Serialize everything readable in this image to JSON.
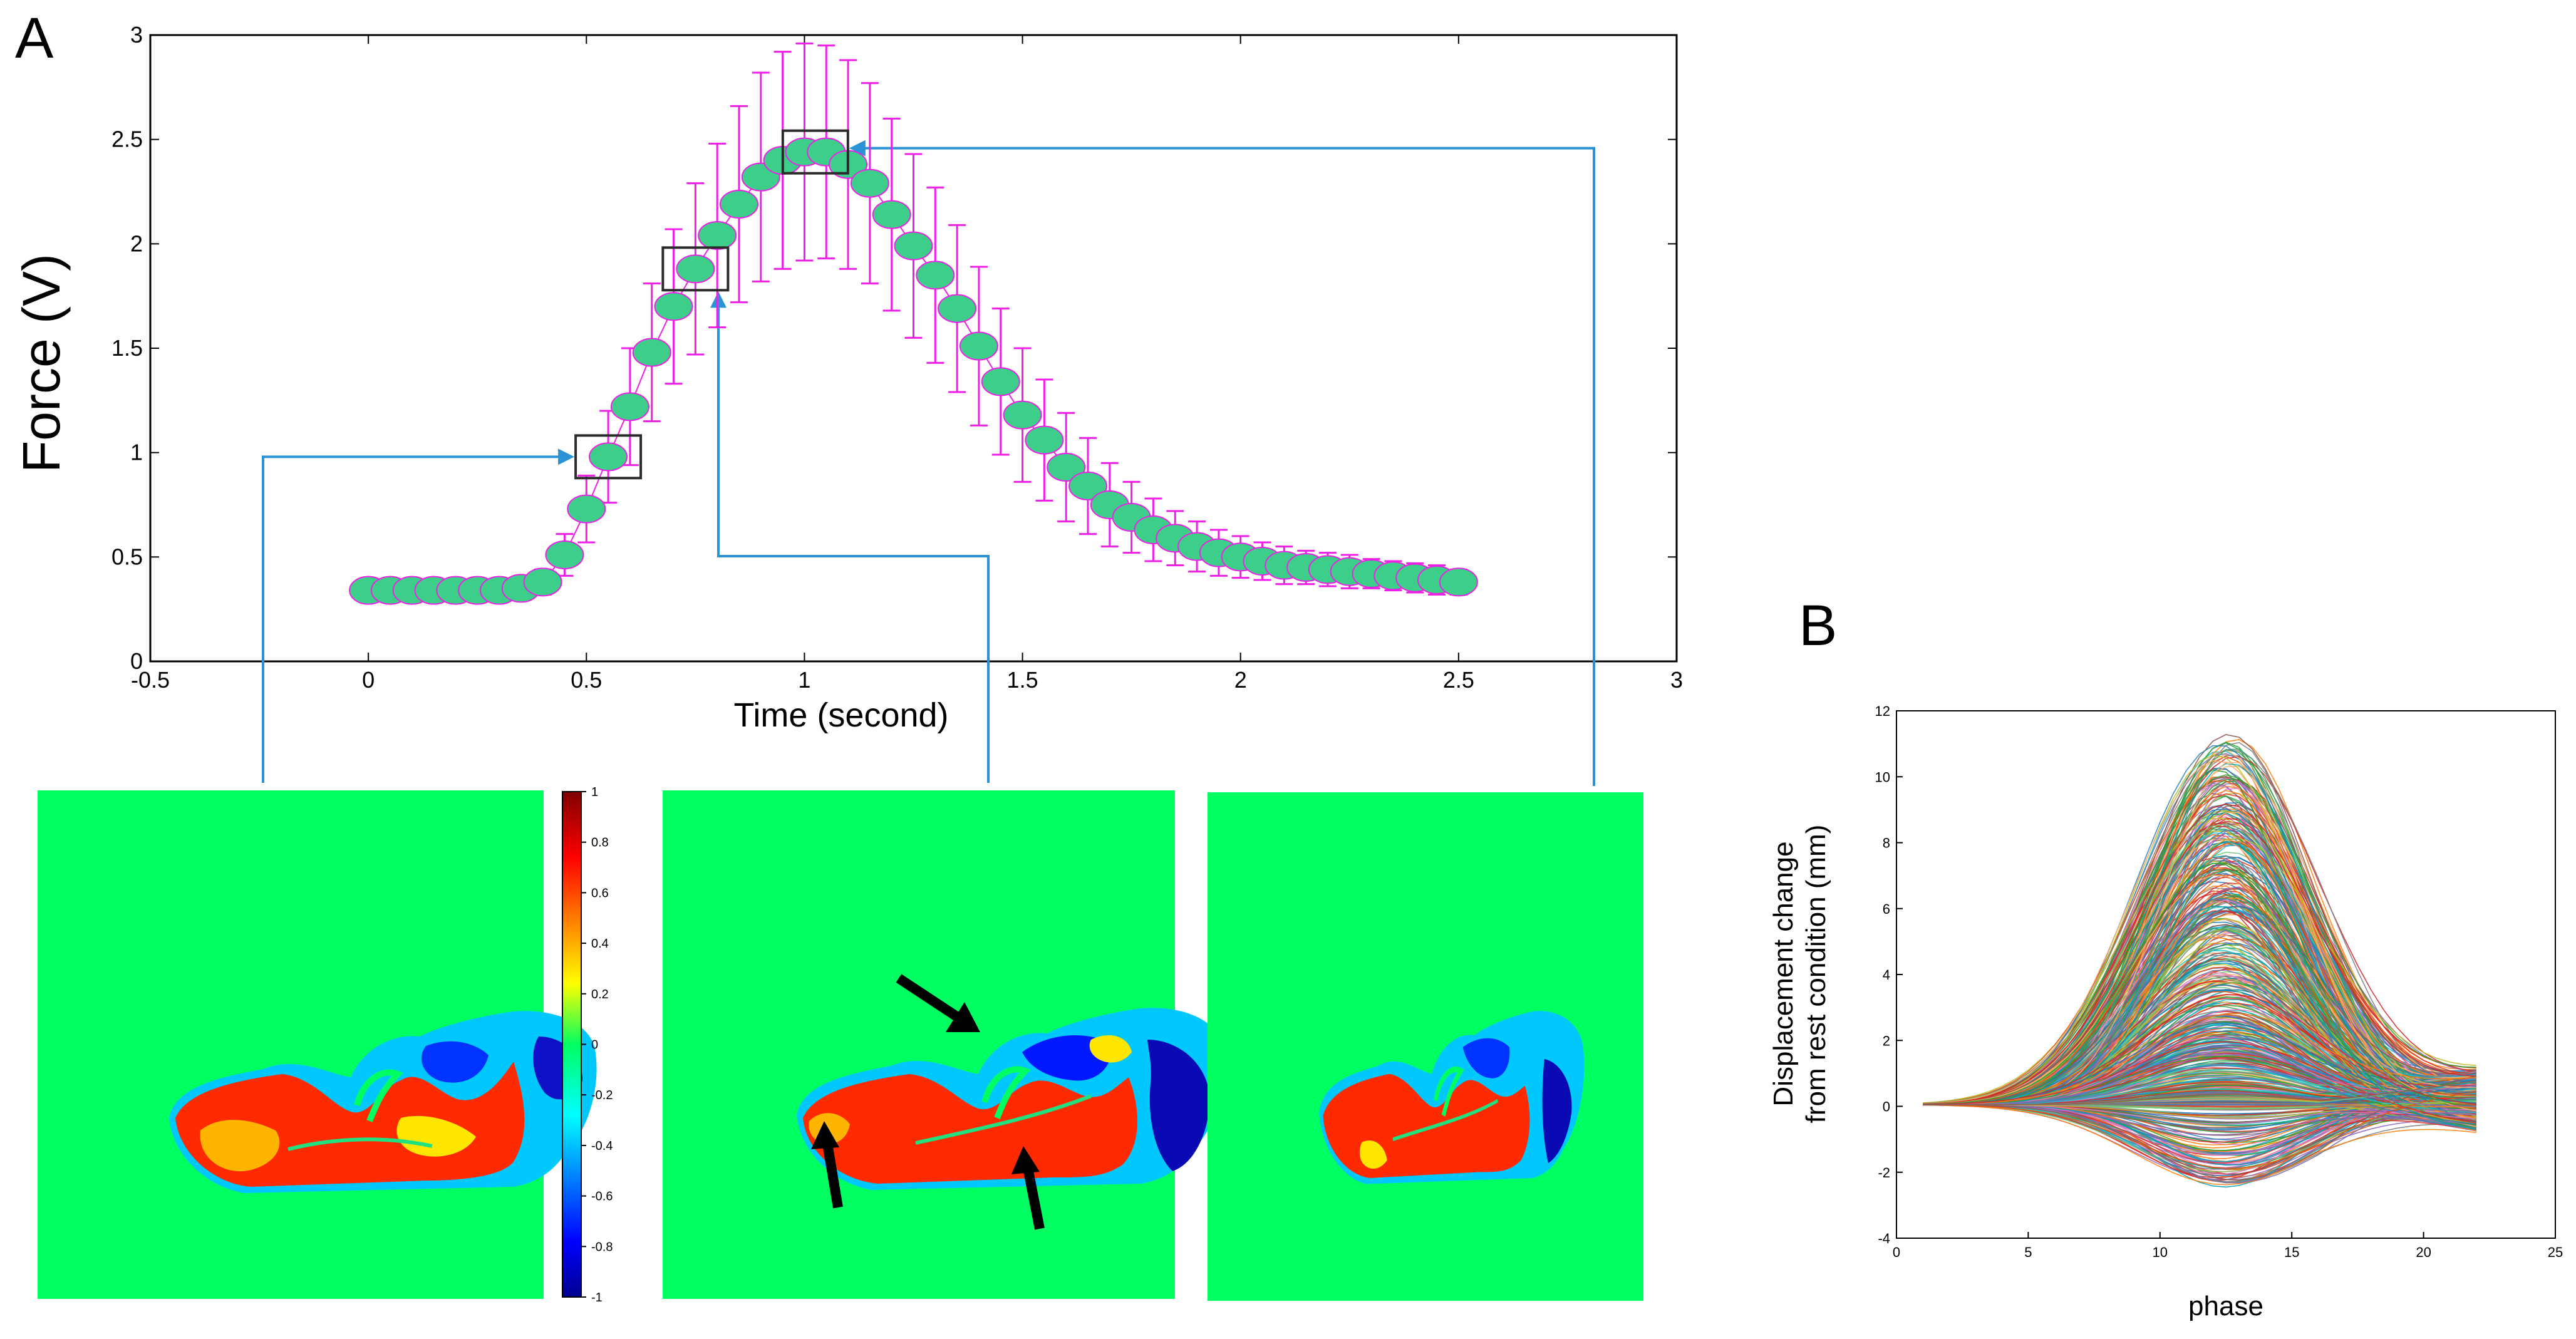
{
  "chart_data": [
    {
      "panel": "A",
      "type": "scatter",
      "title": "",
      "xlabel": "Time (second)",
      "ylabel": "Force (V)",
      "xlim": [
        -0.5,
        3
      ],
      "ylim": [
        0,
        3
      ],
      "xticks": [
        "-0.5",
        "0",
        "0.5",
        "1",
        "1.5",
        "2",
        "2.5",
        "3"
      ],
      "yticks": [
        "0",
        "0.5",
        "1",
        "1.5",
        "2",
        "2.5",
        "3"
      ],
      "grid": false,
      "marker_color": "#3dcf8a",
      "errorbar_color": "#ee1fe6",
      "highlight_box_color": "#2b2b2b",
      "connector_color": "#2a93d5",
      "points": [
        {
          "x": 0.0,
          "y": 0.34,
          "err": 0.03
        },
        {
          "x": 0.05,
          "y": 0.34,
          "err": 0.03
        },
        {
          "x": 0.1,
          "y": 0.34,
          "err": 0.03
        },
        {
          "x": 0.15,
          "y": 0.34,
          "err": 0.03
        },
        {
          "x": 0.2,
          "y": 0.34,
          "err": 0.03
        },
        {
          "x": 0.25,
          "y": 0.34,
          "err": 0.03
        },
        {
          "x": 0.3,
          "y": 0.34,
          "err": 0.03
        },
        {
          "x": 0.35,
          "y": 0.35,
          "err": 0.04
        },
        {
          "x": 0.4,
          "y": 0.38,
          "err": 0.06
        },
        {
          "x": 0.45,
          "y": 0.51,
          "err": 0.1
        },
        {
          "x": 0.5,
          "y": 0.73,
          "err": 0.16
        },
        {
          "x": 0.55,
          "y": 0.98,
          "err": 0.22
        },
        {
          "x": 0.6,
          "y": 1.22,
          "err": 0.28
        },
        {
          "x": 0.65,
          "y": 1.48,
          "err": 0.33
        },
        {
          "x": 0.7,
          "y": 1.7,
          "err": 0.37
        },
        {
          "x": 0.75,
          "y": 1.88,
          "err": 0.41
        },
        {
          "x": 0.8,
          "y": 2.04,
          "err": 0.44
        },
        {
          "x": 0.85,
          "y": 2.19,
          "err": 0.47
        },
        {
          "x": 0.9,
          "y": 2.32,
          "err": 0.5
        },
        {
          "x": 0.95,
          "y": 2.4,
          "err": 0.52
        },
        {
          "x": 1.0,
          "y": 2.44,
          "err": 0.52
        },
        {
          "x": 1.05,
          "y": 2.44,
          "err": 0.51
        },
        {
          "x": 1.1,
          "y": 2.38,
          "err": 0.5
        },
        {
          "x": 1.15,
          "y": 2.29,
          "err": 0.48
        },
        {
          "x": 1.2,
          "y": 2.14,
          "err": 0.46
        },
        {
          "x": 1.25,
          "y": 1.99,
          "err": 0.44
        },
        {
          "x": 1.3,
          "y": 1.85,
          "err": 0.42
        },
        {
          "x": 1.35,
          "y": 1.69,
          "err": 0.4
        },
        {
          "x": 1.4,
          "y": 1.51,
          "err": 0.38
        },
        {
          "x": 1.45,
          "y": 1.34,
          "err": 0.35
        },
        {
          "x": 1.5,
          "y": 1.18,
          "err": 0.32
        },
        {
          "x": 1.55,
          "y": 1.06,
          "err": 0.29
        },
        {
          "x": 1.6,
          "y": 0.93,
          "err": 0.26
        },
        {
          "x": 1.65,
          "y": 0.84,
          "err": 0.23
        },
        {
          "x": 1.7,
          "y": 0.75,
          "err": 0.2
        },
        {
          "x": 1.75,
          "y": 0.69,
          "err": 0.17
        },
        {
          "x": 1.8,
          "y": 0.63,
          "err": 0.15
        },
        {
          "x": 1.85,
          "y": 0.59,
          "err": 0.13
        },
        {
          "x": 1.9,
          "y": 0.55,
          "err": 0.12
        },
        {
          "x": 1.95,
          "y": 0.52,
          "err": 0.11
        },
        {
          "x": 2.0,
          "y": 0.5,
          "err": 0.1
        },
        {
          "x": 2.05,
          "y": 0.48,
          "err": 0.09
        },
        {
          "x": 2.1,
          "y": 0.46,
          "err": 0.09
        },
        {
          "x": 2.15,
          "y": 0.45,
          "err": 0.08
        },
        {
          "x": 2.2,
          "y": 0.44,
          "err": 0.08
        },
        {
          "x": 2.25,
          "y": 0.43,
          "err": 0.08
        },
        {
          "x": 2.3,
          "y": 0.42,
          "err": 0.07
        },
        {
          "x": 2.35,
          "y": 0.41,
          "err": 0.07
        },
        {
          "x": 2.4,
          "y": 0.4,
          "err": 0.07
        },
        {
          "x": 2.45,
          "y": 0.39,
          "err": 0.07
        },
        {
          "x": 2.5,
          "y": 0.38,
          "err": 0.06
        }
      ],
      "highlighted_points": [
        {
          "x": 0.55,
          "y": 0.98,
          "maps_to": "map-left"
        },
        {
          "x": 0.75,
          "y": 1.88,
          "maps_to": "map-middle"
        },
        {
          "x": 1.025,
          "y": 2.44,
          "maps_to": "map-right"
        }
      ]
    },
    {
      "panel": "A-maps",
      "type": "heatmap",
      "colormap": "jet",
      "background_value": 0,
      "colorbar_ticks": [
        "1",
        "0.8",
        "0.6",
        "0.4",
        "0.2",
        "0",
        "-0.2",
        "-0.4",
        "-0.6",
        "-0.8",
        "-1"
      ],
      "colorbar_range": [
        -1,
        1
      ],
      "maps": [
        "map-left",
        "map-middle",
        "map-right"
      ],
      "annotations": "black arrows on middle map"
    },
    {
      "panel": "B",
      "type": "line",
      "title": "",
      "xlabel": "phase",
      "ylabel_line1": "Displacement change",
      "ylabel_line2": "from rest condition (mm)",
      "xlim": [
        0,
        25
      ],
      "ylim": [
        -4,
        12
      ],
      "xticks": [
        "0",
        "5",
        "10",
        "15",
        "20",
        "25"
      ],
      "yticks": [
        "-4",
        "-2",
        "0",
        "2",
        "4",
        "6",
        "8",
        "10",
        "12"
      ],
      "x_range": [
        1,
        22
      ],
      "peak_phase": 12.5,
      "peak_amplitude_range": [
        -2.5,
        11.3
      ],
      "end_value_range": [
        -0.8,
        1.0
      ],
      "series_count": 600,
      "grid": false
    }
  ],
  "panels": {
    "a_label": "A",
    "b_label": "B"
  }
}
